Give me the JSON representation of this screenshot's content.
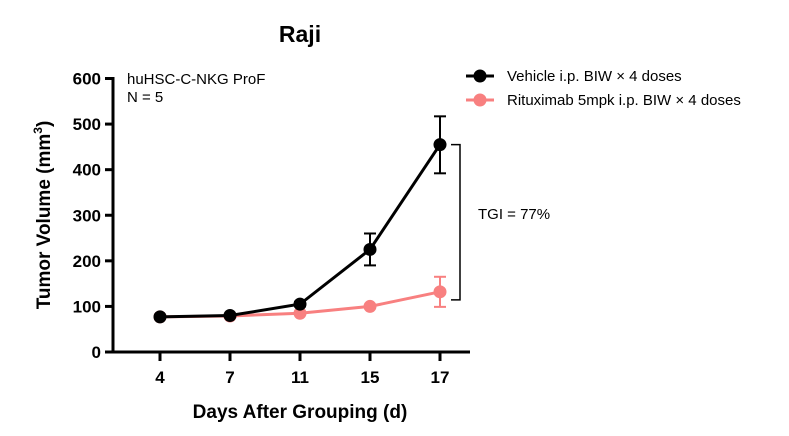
{
  "chart_data": {
    "type": "line",
    "title": "Raji",
    "xlabel": "Days After Grouping (d)",
    "ylabel": "Tumor Volume (mm",
    "ylabel_superscript": "3",
    "ylabel_close": ")",
    "categories": [
      "4",
      "7",
      "11",
      "15",
      "17"
    ],
    "ylim": [
      0,
      600
    ],
    "yticks": [
      "0",
      "100",
      "200",
      "300",
      "400",
      "500",
      "600"
    ],
    "grid": false,
    "legend_position": "top-right",
    "annotations": {
      "model": "huHSC-C-NKG ProF",
      "n": "N = 5",
      "tgi": "TGI = 77%"
    },
    "series": [
      {
        "name": "Vehicle i.p. BIW × 4 doses",
        "color": "#000000",
        "values": [
          77,
          80,
          105,
          225,
          455
        ],
        "error_low": [
          77,
          80,
          100,
          190,
          392
        ],
        "error_high": [
          77,
          80,
          110,
          260,
          517
        ]
      },
      {
        "name": "Rituximab 5mpk i.p. BIW × 4 doses",
        "color": "#F88080",
        "values": [
          77,
          79,
          85,
          100,
          132
        ],
        "error_low": [
          77,
          79,
          85,
          100,
          99
        ],
        "error_high": [
          77,
          79,
          85,
          100,
          165
        ]
      }
    ]
  }
}
